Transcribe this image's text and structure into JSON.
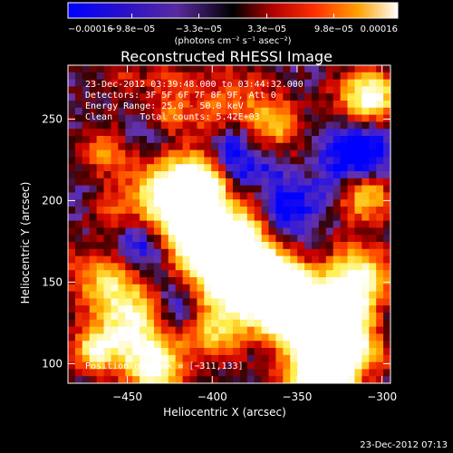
{
  "chart_data": {
    "type": "heatmap",
    "title": "Reconstructed RHESSI Image",
    "xlabel": "Heliocentric X (arcsec)",
    "ylabel": "Heliocentric Y (arcsec)",
    "xlim": [
      -485,
      -295
    ],
    "ylim": [
      88,
      283
    ],
    "x_ticks": [
      -450,
      -400,
      -350,
      -300
    ],
    "y_ticks": [
      100,
      150,
      200,
      250
    ],
    "x_tick_labels": [
      "−450",
      "−400",
      "−350",
      "−300"
    ],
    "y_tick_labels": [
      "100",
      "150",
      "200",
      "250"
    ],
    "colorbar": {
      "range": [
        -0.00016,
        0.00016
      ],
      "ticks": [
        -0.00016,
        -9.8e-05,
        -3.3e-05,
        3.3e-05,
        9.8e-05,
        0.00016
      ],
      "tick_labels": [
        "−0.00016",
        "−9.8e−05",
        "−3.3e−05",
        "3.3e−05",
        "9.8e−05",
        "0.00016"
      ],
      "unit_label": "(photons cm⁻² s⁻¹ asec⁻²)"
    },
    "annotations": [
      "23-Dec-2012 03:39:48.000 to 03:44:32.000",
      "Detectors: 3F 5F 6F 7F 8F 9F, Att 0",
      "Energy Range: 25.0 - 50.0 keV",
      "Clean     Total counts: 5.42E+03",
      "Position of Peak = [−311,133]"
    ],
    "grid": false
  },
  "footer": {
    "timestamp": "23-Dec-2012 07:13"
  },
  "colors": {
    "background": "#000000",
    "text": "#ffffff"
  }
}
